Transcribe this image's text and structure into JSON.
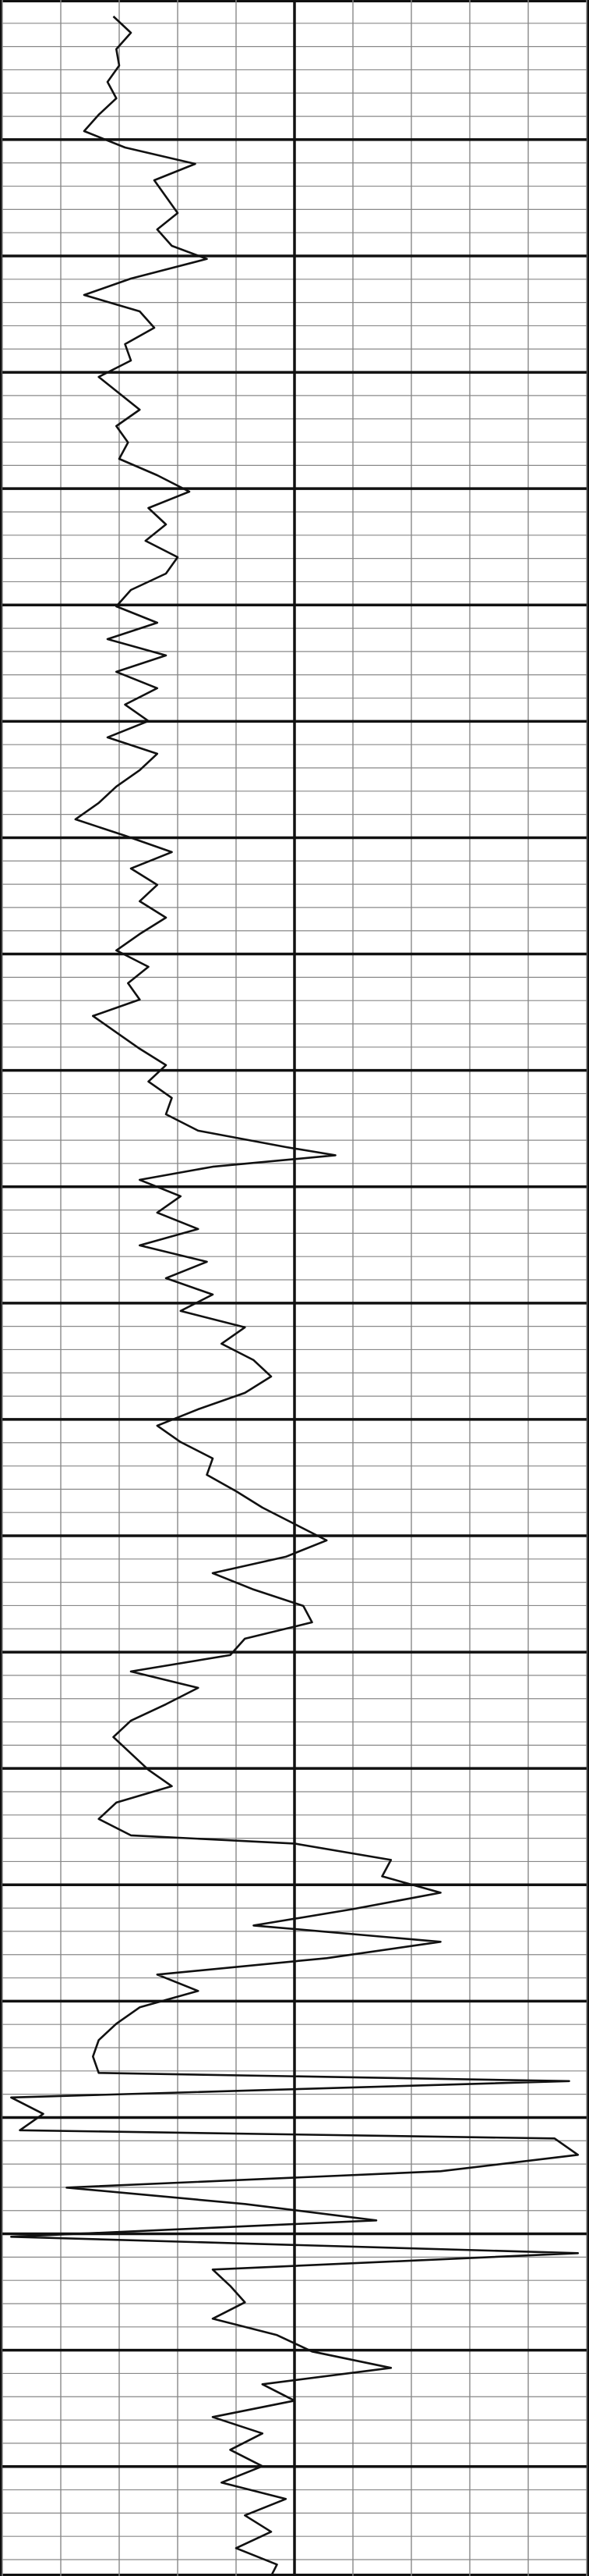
{
  "chart_data": {
    "type": "line",
    "orientation": "vertical",
    "color": "#111111",
    "grid": true,
    "xlim": [
      0,
      10
    ],
    "xticks": [
      0,
      1,
      2,
      3,
      4,
      5,
      6,
      7,
      8,
      9,
      10
    ],
    "major_xticks": [
      5
    ],
    "ylim": [
      0,
      157.2
    ],
    "yticks": [
      1.42,
      2.84,
      4.26,
      5.68,
      7.1,
      8.52,
      9.94,
      11.36,
      12.78,
      14.2,
      15.62,
      17.04,
      18.46,
      19.88,
      21.3,
      22.72,
      24.14,
      25.56,
      26.98,
      28.4,
      29.82,
      31.24,
      32.66,
      34.08,
      35.5,
      36.92,
      38.34,
      39.76,
      41.18,
      42.6,
      44.02,
      45.44,
      46.86,
      48.28,
      49.7,
      51.12,
      52.54,
      53.96,
      55.38,
      56.8,
      58.22,
      59.64,
      61.06,
      62.48,
      63.9,
      65.32,
      66.74,
      68.16,
      69.58,
      71,
      72.42,
      73.84,
      75.26,
      76.68,
      78.1,
      79.52,
      80.94,
      82.36,
      83.78,
      85.2,
      86.62,
      88.04,
      89.46,
      90.88,
      92.3,
      93.72,
      95.14,
      96.56,
      97.98,
      99.4,
      100.82,
      102.24,
      103.66,
      105.08,
      106.5,
      107.92,
      109.34,
      110.76,
      112.18,
      113.6,
      115.02,
      116.44,
      117.86,
      119.28,
      120.7,
      122.12,
      123.54,
      124.96,
      126.38,
      127.8,
      129.22,
      130.64,
      132.06,
      133.48,
      134.9,
      136.32,
      137.74,
      139.16,
      140.58,
      142,
      143.42,
      144.84,
      146.26,
      147.68,
      149.1,
      150.52,
      151.94,
      153.36,
      154.78,
      156.2
    ],
    "major_yticks": [
      8.52,
      15.62,
      22.72,
      29.82,
      36.92,
      44.02,
      51.12,
      58.22,
      65.32,
      72.42,
      79.52,
      86.62,
      93.72,
      100.82,
      107.92,
      115.02,
      122.12,
      129.22,
      136.32,
      143.42,
      150.52
    ],
    "x": [
      1,
      2,
      3,
      4,
      5,
      6,
      7,
      8,
      9,
      10,
      11,
      12,
      13,
      14,
      15,
      15.8,
      17,
      18,
      19,
      20,
      21,
      22,
      23,
      24,
      25,
      26,
      27,
      28,
      29,
      30,
      31,
      32,
      33,
      34,
      35,
      36,
      37,
      38,
      39,
      40,
      41,
      42,
      43,
      44,
      45,
      46,
      47,
      48,
      49,
      50,
      51,
      52,
      53,
      54,
      55,
      56,
      57,
      58,
      59,
      60,
      61,
      62,
      63,
      64,
      65,
      66,
      67,
      68,
      69,
      70,
      70.5,
      71.2,
      72,
      73,
      74,
      75,
      76,
      77,
      78,
      79,
      80,
      81,
      82,
      83,
      84,
      85,
      86,
      87,
      88,
      89,
      90,
      91,
      92,
      93,
      94,
      95,
      96,
      97,
      98,
      99,
      100,
      101,
      102,
      103,
      104,
      105,
      106,
      107,
      108,
      109,
      110,
      111,
      112,
      112.5,
      113.5,
      114.5,
      115.5,
      116.5,
      117.5,
      118.5,
      119.5,
      120.5,
      121.5,
      122.5,
      123.5,
      124.5,
      125.5,
      126.5,
      127,
      128,
      129,
      130,
      130.5,
      131.5,
      132.5,
      133.5,
      134.5,
      135.5,
      136.5,
      137.5,
      138.5,
      139.5,
      140.5,
      141.5,
      142.5,
      143.5,
      144.5,
      145.5,
      146.5,
      147.5,
      148.5,
      149.5,
      150.5,
      151.5,
      152.5,
      153.5,
      154.5,
      155.5,
      156.5,
      157.2
    ],
    "values": [
      1.9,
      2.2,
      1.95,
      2.0,
      1.8,
      1.95,
      1.65,
      1.4,
      2.1,
      3.3,
      2.6,
      2.8,
      3.0,
      2.65,
      2.9,
      3.5,
      2.2,
      1.4,
      2.35,
      2.6,
      2.1,
      2.2,
      1.65,
      2.0,
      2.35,
      1.95,
      2.15,
      2.0,
      2.65,
      3.2,
      2.5,
      2.8,
      2.45,
      3.0,
      2.8,
      2.2,
      1.95,
      2.65,
      1.8,
      2.8,
      1.95,
      2.65,
      2.1,
      2.5,
      1.8,
      2.65,
      2.35,
      1.95,
      1.65,
      1.25,
      2.1,
      2.9,
      2.2,
      2.65,
      2.35,
      2.8,
      2.35,
      1.95,
      2.5,
      2.15,
      2.35,
      1.55,
      1.95,
      2.35,
      2.8,
      2.5,
      2.9,
      2.8,
      3.35,
      4.85,
      5.7,
      3.6,
      2.35,
      3.05,
      2.65,
      3.35,
      2.35,
      3.5,
      2.8,
      3.6,
      3.05,
      4.15,
      3.75,
      4.3,
      4.6,
      4.15,
      3.35,
      2.65,
      3.05,
      3.6,
      3.5,
      4.0,
      4.45,
      5.0,
      5.55,
      4.85,
      3.6,
      4.3,
      5.15,
      5.3,
      4.15,
      3.9,
      2.2,
      3.35,
      2.8,
      2.2,
      1.9,
      2.2,
      2.5,
      2.9,
      1.95,
      1.65,
      2.2,
      5.0,
      6.65,
      6.5,
      7.5,
      6.0,
      4.3,
      7.5,
      5.55,
      2.65,
      3.35,
      2.35,
      1.95,
      1.65,
      1.55,
      1.65,
      9.7,
      0.15,
      0.7,
      0.3,
      9.45,
      9.85,
      7.5,
      1.1,
      4.15,
      6.4,
      0.15,
      9.85,
      3.6,
      3.9,
      4.15,
      3.6,
      4.7,
      5.3,
      6.65,
      4.45,
      5.0,
      3.6,
      4.45,
      3.9,
      4.45,
      3.75,
      4.85,
      4.15,
      4.6,
      4.0,
      4.7,
      4.6
    ]
  }
}
